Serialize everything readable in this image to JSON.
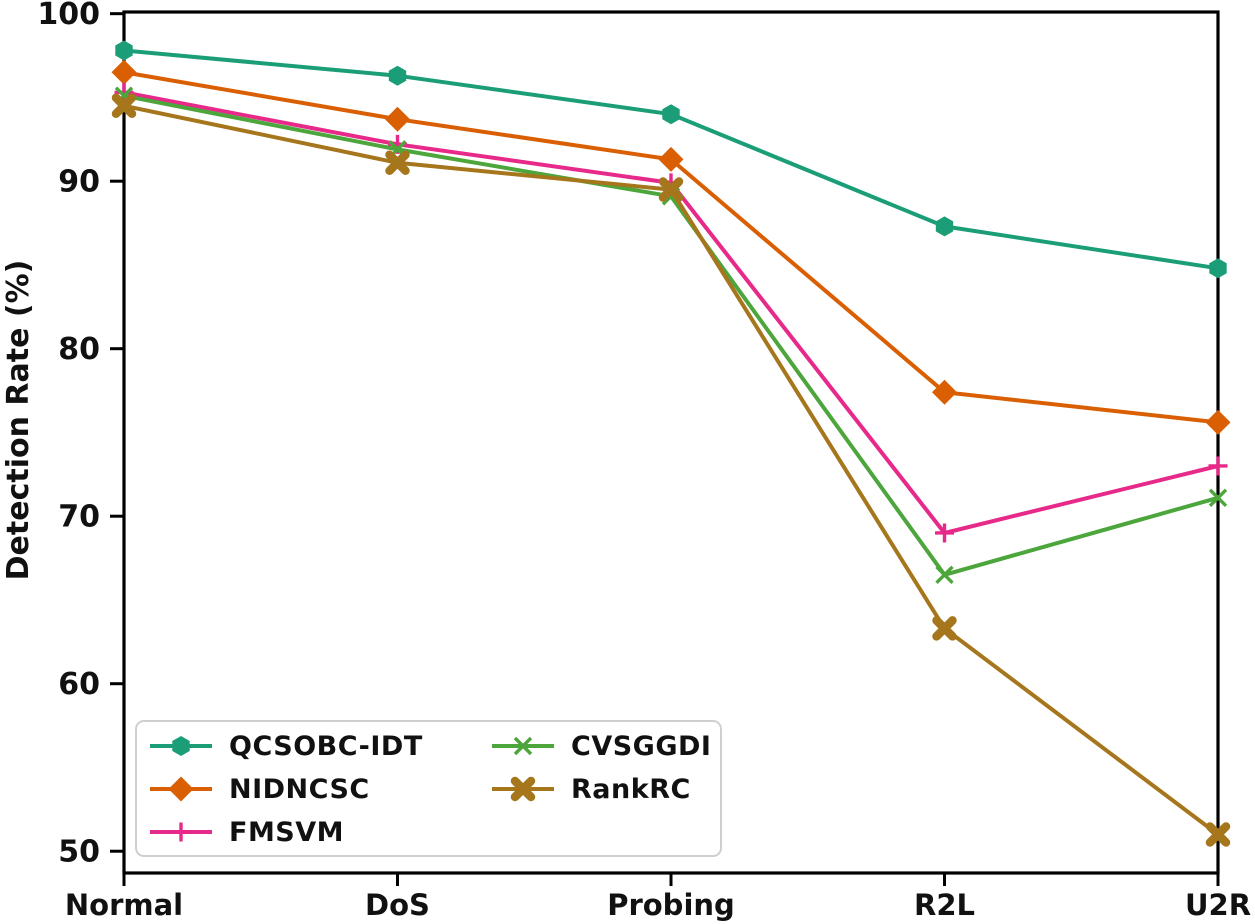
{
  "figure": {
    "background": "#ffffff",
    "text_color": "#111111",
    "spine_color": "#000000"
  },
  "chart_data": {
    "type": "line",
    "title": "",
    "xlabel": "",
    "ylabel": "Detection Rate (%)",
    "categories": [
      "Normal",
      "DoS",
      "Probing",
      "R2L",
      "U2R"
    ],
    "ylim": [
      48.7,
      100.1
    ],
    "yticks": [
      50,
      60,
      70,
      80,
      90,
      100
    ],
    "grid": false,
    "legend_position": "lower-left",
    "legend_columns": 2,
    "series": [
      {
        "name": "QCSOBC-IDT",
        "color": "#1b9e77",
        "marker": "hexagon",
        "values": [
          97.8,
          96.3,
          94.0,
          87.3,
          84.8
        ]
      },
      {
        "name": "NIDNCSC",
        "color": "#d95f02",
        "marker": "diamond",
        "values": [
          96.5,
          93.7,
          91.3,
          77.4,
          75.6
        ]
      },
      {
        "name": "FMSVM",
        "color": "#e7298a",
        "marker": "plus",
        "values": [
          95.3,
          92.2,
          89.9,
          69.0,
          73.0
        ]
      },
      {
        "name": "CVSGGDI",
        "color": "#4ca63c",
        "marker": "x",
        "values": [
          95.1,
          91.9,
          89.1,
          66.5,
          71.1
        ]
      },
      {
        "name": "RankRC",
        "color": "#a6761d",
        "marker": "X-bold",
        "values": [
          94.5,
          91.1,
          89.5,
          63.3,
          51.0
        ]
      }
    ]
  }
}
